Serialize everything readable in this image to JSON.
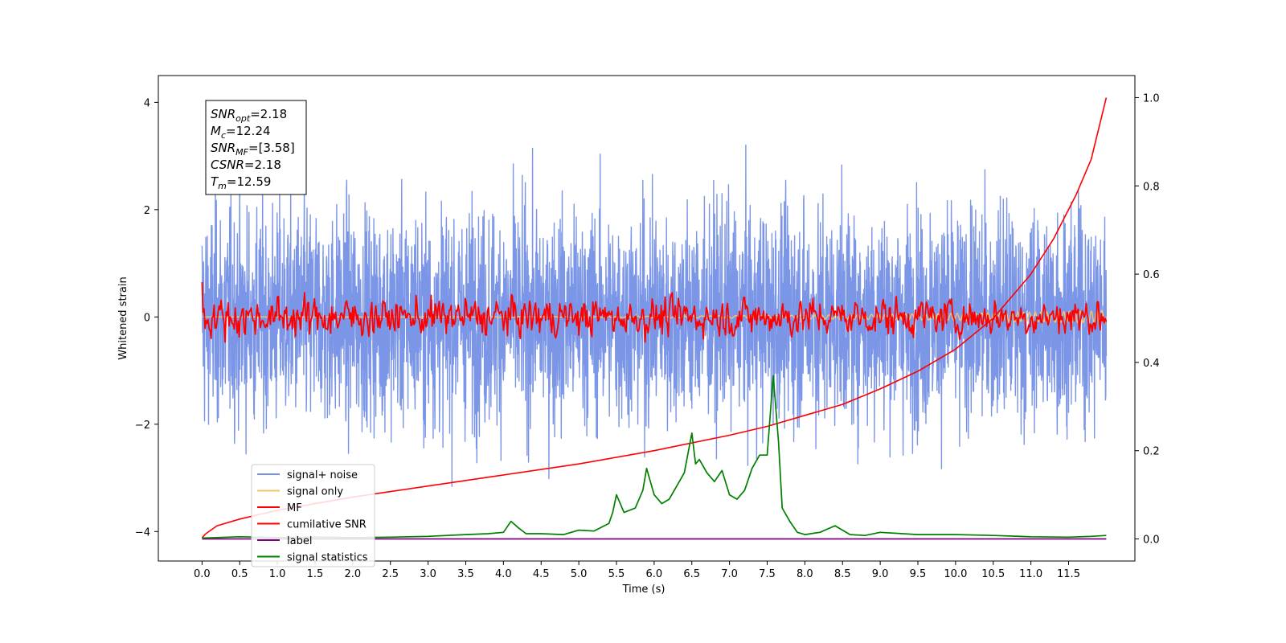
{
  "chart_data": {
    "type": "line",
    "title": "",
    "xlabel": "Time (s)",
    "ylabel": "Whitened strain",
    "xlim": [
      -0.58,
      12.38
    ],
    "ylim": [
      -4.55,
      4.5
    ],
    "y2lim": [
      -0.05,
      1.05
    ],
    "x_ticks": [
      0.0,
      0.5,
      1.0,
      1.5,
      2.0,
      2.5,
      3.0,
      3.5,
      4.0,
      4.5,
      5.0,
      5.5,
      6.0,
      6.5,
      7.0,
      7.5,
      8.0,
      8.5,
      9.0,
      9.5,
      10.0,
      10.5,
      11.0,
      11.5
    ],
    "x_tick_labels": [
      "0.0",
      "0.5",
      "1.0",
      "1.5",
      "2.0",
      "2.5",
      "3.0",
      "3.5",
      "4.0",
      "4.5",
      "5.0",
      "5.5",
      "6.0",
      "6.5",
      "7.0",
      "7.5",
      "8.0",
      "8.5",
      "9.0",
      "9.5",
      "10.0",
      "10.5",
      "11.0",
      "11.5"
    ],
    "y_ticks": [
      4,
      2,
      0,
      -2,
      -4
    ],
    "y_tick_labels": [
      "4",
      "2",
      "0",
      "−2",
      "−4"
    ],
    "y2_ticks": [
      1.0,
      0.8,
      0.6,
      0.4,
      0.2,
      0.0
    ],
    "y2_tick_labels": [
      "1.0",
      "0.8",
      "0.6",
      "0.4",
      "0.2",
      "0.0"
    ],
    "grid": false,
    "legend_position": "lower-left",
    "series": [
      {
        "name": "signal+ noise",
        "color": "#7590e6",
        "axis": "left",
        "style": "noise",
        "amplitude": 1.0,
        "t_range": [
          0,
          12.0
        ]
      },
      {
        "name": "signal only",
        "color": "#f5c46a",
        "axis": "left",
        "style": "chirp",
        "amplitude_end": 0.12
      },
      {
        "name": "MF",
        "color": "#ff0000",
        "axis": "left",
        "style": "mf",
        "amplitude": 0.25
      },
      {
        "name": "cumilative SNR",
        "color": "#ff0000",
        "axis": "right",
        "x": [
          0,
          0.05,
          0.2,
          0.5,
          1,
          1.5,
          2,
          3,
          4,
          5,
          6,
          7,
          7.5,
          8,
          8.5,
          9,
          9.5,
          10,
          10.5,
          11,
          11.3,
          11.6,
          11.8,
          12.0
        ],
        "y": [
          0.003,
          0.012,
          0.03,
          0.045,
          0.065,
          0.08,
          0.095,
          0.12,
          0.145,
          0.17,
          0.2,
          0.235,
          0.255,
          0.28,
          0.305,
          0.34,
          0.38,
          0.43,
          0.5,
          0.6,
          0.68,
          0.78,
          0.86,
          1.0
        ]
      },
      {
        "name": "label",
        "color": "#800080",
        "axis": "right",
        "x": [
          0,
          12.0
        ],
        "y": [
          0.0,
          0.0
        ]
      },
      {
        "name": "signal statistics",
        "color": "#008000",
        "axis": "right",
        "x": [
          0,
          0.5,
          1.0,
          1.5,
          2.0,
          2.5,
          3.0,
          3.5,
          3.8,
          4.0,
          4.1,
          4.2,
          4.3,
          4.5,
          4.8,
          5.0,
          5.2,
          5.4,
          5.45,
          5.5,
          5.6,
          5.75,
          5.85,
          5.9,
          6.0,
          6.1,
          6.2,
          6.3,
          6.4,
          6.5,
          6.55,
          6.6,
          6.7,
          6.8,
          6.9,
          7.0,
          7.1,
          7.2,
          7.3,
          7.4,
          7.5,
          7.58,
          7.65,
          7.7,
          7.8,
          7.9,
          8.0,
          8.2,
          8.4,
          8.6,
          8.8,
          9.0,
          9.3,
          9.5,
          10.0,
          10.5,
          11.0,
          11.5,
          11.8,
          12.0
        ],
        "y": [
          0.002,
          0.005,
          0.003,
          0.004,
          0.003,
          0.004,
          0.006,
          0.01,
          0.012,
          0.015,
          0.04,
          0.025,
          0.012,
          0.012,
          0.01,
          0.02,
          0.018,
          0.035,
          0.06,
          0.1,
          0.06,
          0.07,
          0.11,
          0.16,
          0.1,
          0.08,
          0.09,
          0.12,
          0.15,
          0.24,
          0.17,
          0.18,
          0.15,
          0.13,
          0.155,
          0.1,
          0.09,
          0.11,
          0.16,
          0.19,
          0.19,
          0.37,
          0.22,
          0.07,
          0.04,
          0.015,
          0.01,
          0.015,
          0.03,
          0.01,
          0.008,
          0.015,
          0.012,
          0.01,
          0.01,
          0.008,
          0.005,
          0.004,
          0.006,
          0.008
        ]
      }
    ],
    "annotation_lines": [
      {
        "var": "SNR",
        "sub": "opt",
        "value": "=2.18"
      },
      {
        "var": "M",
        "sub": "c",
        "value": "=12.24"
      },
      {
        "var": "SNR",
        "sub": "MF",
        "value": "=[3.58]"
      },
      {
        "var": "CSNR",
        "sub": "",
        "value": "=2.18"
      },
      {
        "var": "T",
        "sub": "m",
        "value": "=12.59"
      }
    ]
  }
}
